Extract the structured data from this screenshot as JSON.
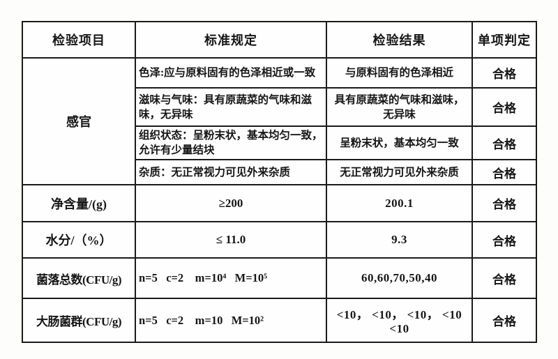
{
  "report_table": {
    "headers": [
      "检验项目",
      "标准规定",
      "检验结果",
      "单项判定"
    ],
    "sensory": {
      "label": "感官",
      "subrows": [
        {
          "spec": "色泽:应与原料固有的色泽相近或一致",
          "result": "与原料固有的色泽相近",
          "verdict": "合格"
        },
        {
          "spec": "滋味与气味：具有原蔬菜的气味和滋\n味，无异味",
          "result": "具有原蔬菜的气味和滋味，\n无异味",
          "verdict": "合格"
        },
        {
          "spec": "组织状态：呈粉末状，基本均匀一致，\n允许有少量结块",
          "result": "呈粉末状，基本均匀一致",
          "verdict": "合格"
        },
        {
          "spec": "杂质：无正常视力可见外来杂质",
          "result": "无正常视力可见外来杂质",
          "verdict": "合格"
        }
      ]
    },
    "rows": [
      {
        "item": "净含量/(g)",
        "spec": "≥200",
        "result": "200.1",
        "verdict": "合格"
      },
      {
        "item": "水分/（%）",
        "spec": "≤ 11.0",
        "result": "9.3",
        "verdict": "合格"
      },
      {
        "item": "菌落总数(CFU/g)",
        "spec": "n=5   c=2    m=10⁴   M=10⁵",
        "result": "60,60,70,50,40",
        "verdict": "合格"
      },
      {
        "item": "大肠菌群(CFU/g)",
        "spec": "n=5   c=2    m=10   M=10²",
        "result": "<10， <10， <10， <10\n<10",
        "verdict": "合格"
      }
    ]
  }
}
